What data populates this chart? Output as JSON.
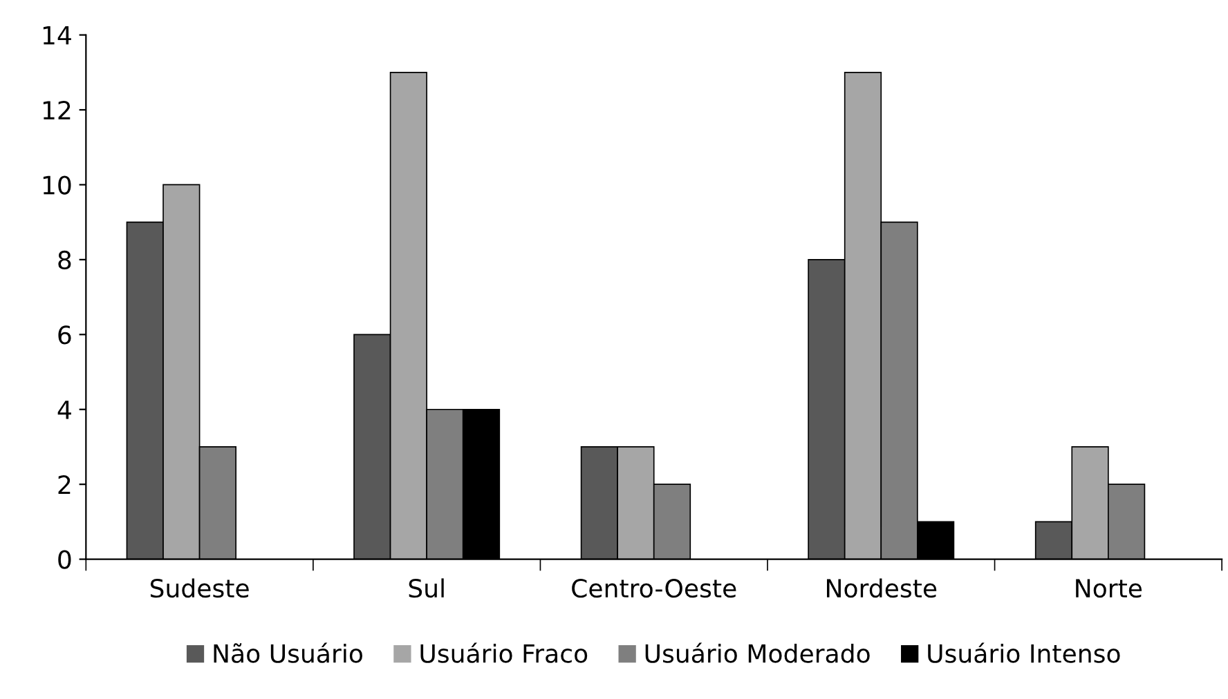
{
  "chart_data": {
    "type": "bar",
    "categories": [
      "Sudeste",
      "Sul",
      "Centro-Oeste",
      "Nordeste",
      "Norte"
    ],
    "series": [
      {
        "name": "Não Usuário",
        "color": "#595959",
        "values": [
          9,
          6,
          3,
          8,
          1
        ]
      },
      {
        "name": "Usuário Fraco",
        "color": "#a6a6a6",
        "values": [
          10,
          13,
          3,
          13,
          3
        ]
      },
      {
        "name": "Usuário Moderado",
        "color": "#7f7f7f",
        "values": [
          3,
          4,
          2,
          9,
          2
        ]
      },
      {
        "name": "Usuário Intenso",
        "color": "#000000",
        "values": [
          null,
          4,
          null,
          1,
          null
        ]
      }
    ],
    "ylim": [
      0,
      14
    ],
    "yticks": [
      0,
      2,
      4,
      6,
      8,
      10,
      12,
      14
    ],
    "grid": false,
    "legend": "bottom"
  }
}
